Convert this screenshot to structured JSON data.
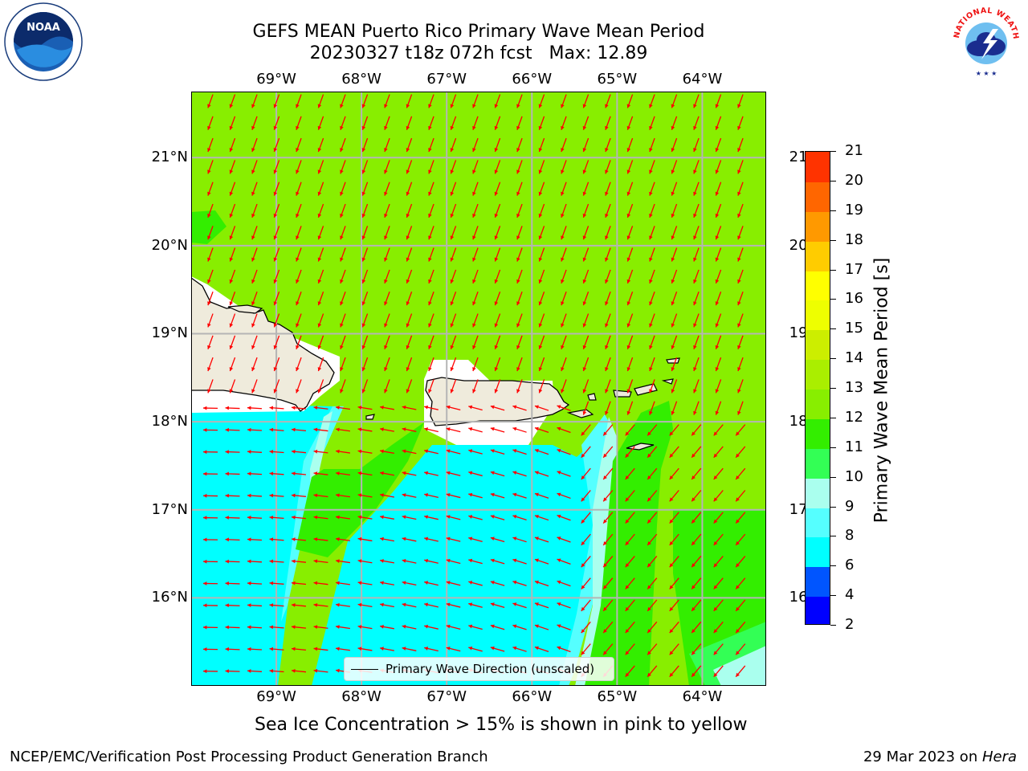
{
  "header": {
    "title_line1": "GEFS MEAN Puerto Rico Primary Wave Mean Period",
    "title_line2": "20230327 t18z 072h fcst   Max: 12.89"
  },
  "logos": {
    "noaa_text": "NOAA",
    "noaa_ring_text": "NATIONAL OCEANIC AND ATMOSPHERIC ADMINISTRATION · U.S. DEPARTMENT OF COMMERCE",
    "nws_ring_text": "NATIONAL WEATHER SERVICE"
  },
  "map": {
    "lon_range": [
      -70.0,
      -63.25
    ],
    "lat_range": [
      15.0,
      21.75
    ],
    "lon_ticks": [
      "69°W",
      "68°W",
      "67°W",
      "66°W",
      "65°W",
      "64°W"
    ],
    "lat_ticks": [
      "21°N",
      "20°N",
      "19°N",
      "18°N",
      "17°N",
      "16°N"
    ],
    "land_color": "#efebdc",
    "grid": true,
    "arrow_color": "#ff0000",
    "legend_label": "Primary Wave Direction (unscaled)"
  },
  "colorbar": {
    "title": "Primary Wave Mean Period [s]",
    "ticks": [
      "2",
      "4",
      "6",
      "8",
      "9",
      "10",
      "11",
      "12",
      "13",
      "14",
      "15",
      "16",
      "17",
      "18",
      "19",
      "20",
      "21"
    ],
    "colors": [
      "#0000ff",
      "#0055ff",
      "#00ffff",
      "#55ffff",
      "#aaffee",
      "#33ff55",
      "#33ee00",
      "#88ee00",
      "#aaee00",
      "#ccee00",
      "#eeff00",
      "#ffff00",
      "#ffcc00",
      "#ff9900",
      "#ff6600",
      "#ff3300",
      "#ff0000"
    ]
  },
  "note": "Sea Ice Concentration > 15% is shown in pink to yellow",
  "footer": {
    "left": "NCEP/EMC/Verification Post Processing Product Generation Branch",
    "right_prefix": "29 Mar 2023 on ",
    "right_host": "Hera"
  }
}
